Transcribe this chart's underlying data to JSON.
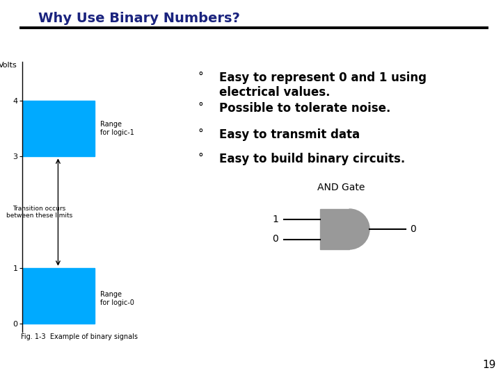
{
  "title": "Why Use Binary Numbers?",
  "title_color": "#1a237e",
  "background_color": "#ffffff",
  "bullet_points": [
    "Easy to represent 0 and 1 using\nelectrical values.",
    "Possible to tolerate noise.",
    "Easy to transmit data",
    "Easy to build binary circuits."
  ],
  "bar_color": "#00aaff",
  "axis_label_volts": "Volts",
  "range_logic1": "Range\nfor logic-1",
  "range_logic0": "Range\nfor logic-0",
  "transition_text": "Transition occurs\nbetween these limits",
  "fig_caption": "Fig. 1-3  Example of binary signals",
  "and_gate_label": "AND Gate",
  "input1": "1",
  "input2": "0",
  "output": "0",
  "page_number": "19",
  "gate_color": "#999999"
}
